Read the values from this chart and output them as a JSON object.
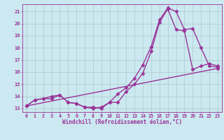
{
  "xlabel": "Windchill (Refroidissement éolien,°C)",
  "background_color": "#cce8f0",
  "plot_bg_color": "#cce8f0",
  "grid_color": "#aacccc",
  "line_color": "#993399",
  "xlim": [
    -0.5,
    23.5
  ],
  "ylim": [
    12.7,
    21.6
  ],
  "yticks": [
    13,
    14,
    15,
    16,
    17,
    18,
    19,
    20,
    21
  ],
  "xticks": [
    0,
    1,
    2,
    3,
    4,
    5,
    6,
    7,
    8,
    9,
    10,
    11,
    12,
    13,
    14,
    15,
    16,
    17,
    18,
    19,
    20,
    21,
    22,
    23
  ],
  "series1_x": [
    0,
    1,
    2,
    3,
    4,
    5,
    6,
    7,
    8,
    9,
    10,
    11,
    12,
    13,
    14,
    15,
    16,
    17,
    18,
    19,
    20,
    21,
    22,
    23
  ],
  "series1_y": [
    13.2,
    13.7,
    13.8,
    13.8,
    14.1,
    13.5,
    13.4,
    13.1,
    13.0,
    13.1,
    13.5,
    14.2,
    14.7,
    15.5,
    16.6,
    18.1,
    20.3,
    21.3,
    21.0,
    19.5,
    19.6,
    18.0,
    16.5,
    16.4
  ],
  "series2_x": [
    0,
    1,
    2,
    3,
    4,
    5,
    6,
    7,
    8,
    9,
    10,
    11,
    12,
    13,
    14,
    15,
    16,
    17,
    18,
    19,
    20,
    21,
    22,
    23
  ],
  "series2_y": [
    13.2,
    13.7,
    13.8,
    14.0,
    14.1,
    13.5,
    13.4,
    13.1,
    13.1,
    13.0,
    13.5,
    13.5,
    14.4,
    15.0,
    15.9,
    17.7,
    20.1,
    21.2,
    19.5,
    19.4,
    16.2,
    16.5,
    16.7,
    16.5
  ],
  "series3_x": [
    0,
    23
  ],
  "series3_y": [
    13.2,
    16.3
  ],
  "marker": "D",
  "markersize": 2.5,
  "linewidth": 1.0
}
